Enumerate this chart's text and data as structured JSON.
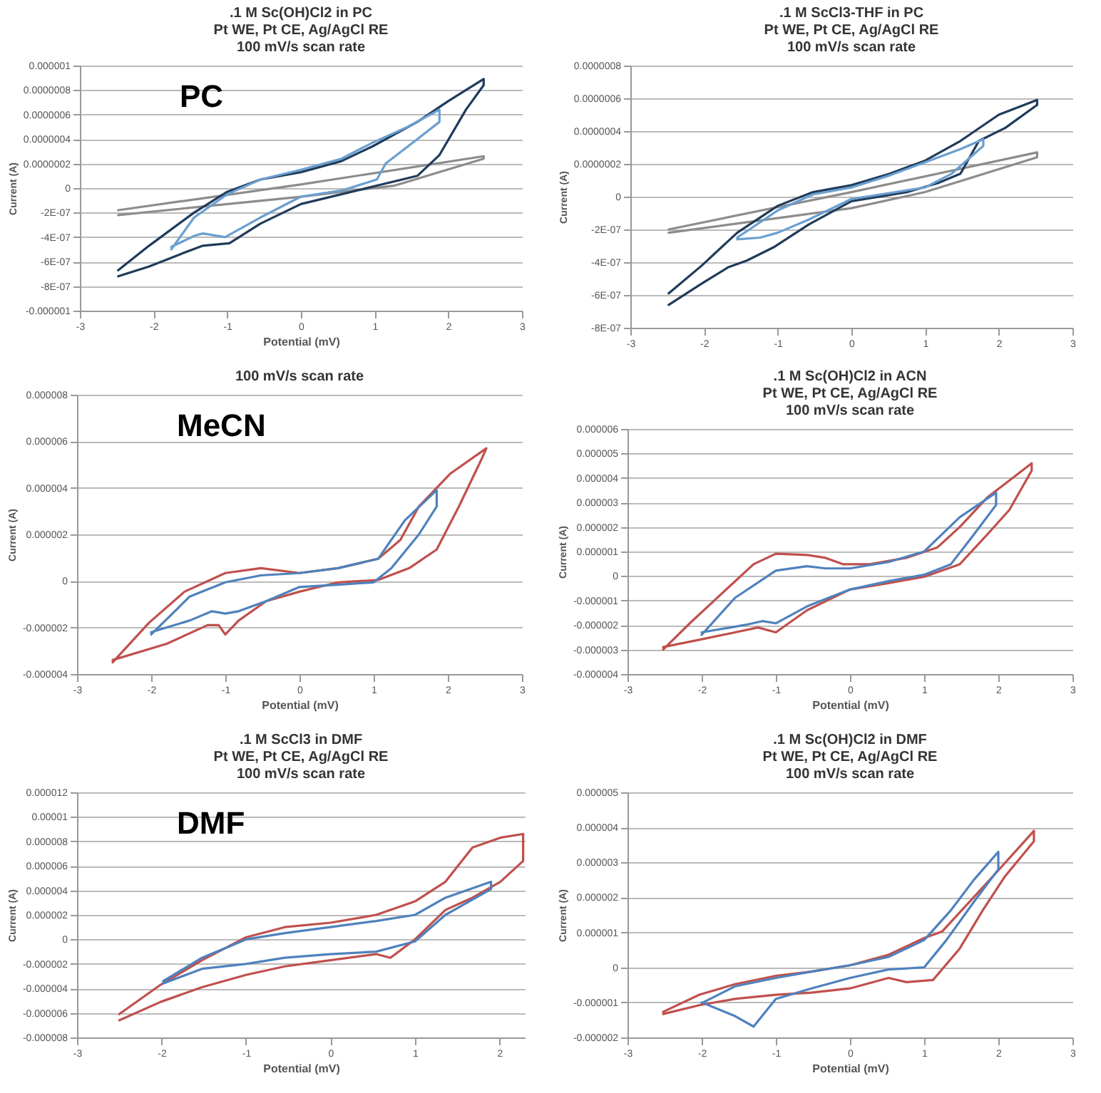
{
  "chart_data": [
    {
      "type": "line",
      "title": ".1 M Sc(OH)Cl2 in PC\nPt WE, Pt CE, Ag/AgCl RE\n100 mV/s scan rate",
      "xlabel": "Potential (mV)",
      "ylabel": "Current (A)",
      "annotations": [
        "PC"
      ],
      "grid": "y",
      "marker": "none",
      "line_style": "solid",
      "xlim": [
        -3,
        3
      ],
      "xticks": [
        -3,
        -2,
        -1,
        0,
        1,
        2,
        3
      ],
      "ylim": [
        -1e-06,
        1e-06
      ],
      "yticks": [
        {
          "value": -1e-06,
          "label": "-0.000001"
        },
        {
          "value": -8e-07,
          "label": "-8E-07"
        },
        {
          "value": -6e-07,
          "label": "-6E-07"
        },
        {
          "value": -4e-07,
          "label": "-4E-07"
        },
        {
          "value": -2e-07,
          "label": "-2E-07"
        },
        {
          "value": 0,
          "label": "0"
        },
        {
          "value": 2e-07,
          "label": "0.0000002"
        },
        {
          "value": 4e-07,
          "label": "0.0000004"
        },
        {
          "value": 6e-07,
          "label": "0.0000006"
        },
        {
          "value": 8e-07,
          "label": "0.0000008"
        },
        {
          "value": 1e-06,
          "label": "0.000001"
        }
      ],
      "series": [
        {
          "color": "#8c8c8c",
          "x": [
            -2.48,
            0,
            2.48,
            2.48,
            1.27,
            0,
            -2.48
          ],
          "values": [
            -1.8e-07,
            3e-08,
            2.6e-07,
            2.4e-07,
            2e-08,
            -7e-08,
            -2.2e-07
          ]
        },
        {
          "color": "#1f3b5a",
          "x": [
            -2.48,
            -2.06,
            -1.45,
            -1.0,
            -0.55,
            0,
            0.55,
            0.97,
            1.58,
            2.0,
            2.48,
            2.48,
            2.24,
            1.88,
            1.58,
            1.03,
            0.55,
            0,
            -0.55,
            -0.97,
            -1.33,
            -1.64,
            -2.06,
            -2.48
          ],
          "values": [
            -6.7e-07,
            -4.7e-07,
            -2e-07,
            -3e-08,
            7e-08,
            1.3e-07,
            2.2e-07,
            3.4e-07,
            5.4e-07,
            7.1e-07,
            8.9e-07,
            8.4e-07,
            6.4e-07,
            2.7e-07,
            1e-07,
            2e-08,
            -5e-08,
            -1.3e-07,
            -2.9e-07,
            -4.5e-07,
            -4.7e-07,
            -5.4e-07,
            -6.4e-07,
            -7.2e-07
          ]
        },
        {
          "color": "#6a9fd0",
          "x": [
            -1.76,
            -1.45,
            -1.0,
            -0.55,
            0,
            0.55,
            0.97,
            1.45,
            1.88,
            1.88,
            1.58,
            1.15,
            1.03,
            0.55,
            0,
            -0.55,
            -1.03,
            -1.33,
            -1.45,
            -1.76
          ],
          "values": [
            -5e-07,
            -2.4e-07,
            -5e-08,
            7e-08,
            1.5e-07,
            2.4e-07,
            3.7e-07,
            5e-07,
            6.4e-07,
            5.4e-07,
            4e-07,
            2e-07,
            7e-08,
            -2e-08,
            -7e-08,
            -2.4e-07,
            -4e-07,
            -3.7e-07,
            -3.9e-07,
            -4.8e-07
          ]
        }
      ]
    },
    {
      "type": "line",
      "title": ".1 M ScCl3-THF in PC\nPt WE, Pt CE, Ag/AgCl RE\n100 mV/s scan rate",
      "ylabel": "Current (A)",
      "grid": "y",
      "marker": "none",
      "line_style": "solid",
      "xlim": [
        -3,
        3
      ],
      "xticks": [
        -3,
        -2,
        -1,
        0,
        1,
        2,
        3
      ],
      "ylim": [
        -8e-07,
        8e-07
      ],
      "yticks": [
        {
          "value": -8e-07,
          "label": "-8E-07"
        },
        {
          "value": -6e-07,
          "label": "-6E-07"
        },
        {
          "value": -4e-07,
          "label": "-4E-07"
        },
        {
          "value": -2e-07,
          "label": "-2E-07"
        },
        {
          "value": 0,
          "label": "0"
        },
        {
          "value": 2e-07,
          "label": "0.0000002"
        },
        {
          "value": 4e-07,
          "label": "0.0000004"
        },
        {
          "value": 6e-07,
          "label": "0.0000006"
        },
        {
          "value": 8e-07,
          "label": "0.0000008"
        }
      ],
      "series": [
        {
          "color": "#8c8c8c",
          "x": [
            -2.48,
            0,
            2.52,
            2.52,
            1.0,
            0,
            -2.48
          ],
          "values": [
            -2e-07,
            2.8e-08,
            2.7e-07,
            2.4e-07,
            2.8e-08,
            -7e-08,
            -2.2e-07
          ]
        },
        {
          "color": "#1f3b5a",
          "x": [
            -2.48,
            -2.03,
            -1.55,
            -1.0,
            -0.52,
            0,
            0.52,
            1.0,
            1.48,
            2.0,
            2.52,
            2.52,
            2.09,
            1.73,
            1.48,
            1.18,
            0.76,
            0,
            -0.58,
            -1.06,
            -1.42,
            -1.67,
            -2.03,
            -2.48
          ],
          "values": [
            -5.9e-07,
            -4.2e-07,
            -2.2e-07,
            -5.6e-08,
            2.8e-08,
            7e-08,
            1.4e-07,
            2.2e-07,
            3.4e-07,
            5e-07,
            5.9e-07,
            5.6e-07,
            4.2e-07,
            3.4e-07,
            1.4e-07,
            8.4e-08,
            2.8e-08,
            -2.8e-08,
            -1.7e-07,
            -3.1e-07,
            -3.9e-07,
            -4.3e-07,
            -5.3e-07,
            -6.6e-07
          ]
        },
        {
          "color": "#6a9fd0",
          "x": [
            -1.55,
            -1.0,
            -0.52,
            0,
            0.52,
            1.0,
            1.48,
            1.79,
            1.79,
            1.36,
            1.0,
            0,
            -0.58,
            -1.0,
            -1.24,
            -1.55
          ],
          "values": [
            -2.5e-07,
            -8.4e-08,
            1.4e-08,
            5.6e-08,
            1.3e-07,
            2.1e-07,
            2.9e-07,
            3.5e-07,
            3.1e-07,
            1.4e-07,
            5.6e-08,
            -1.4e-08,
            -1.4e-07,
            -2.2e-07,
            -2.5e-07,
            -2.6e-07
          ]
        }
      ]
    },
    {
      "type": "line",
      "title": "100 mV/s scan rate",
      "xlabel": "Potential (mV)",
      "ylabel": "Current (A)",
      "annotations": [
        "MeCN"
      ],
      "grid": "y",
      "marker": "none",
      "line_style": "solid",
      "xlim": [
        -3,
        3
      ],
      "xticks": [
        -3,
        -2,
        -1,
        0,
        1,
        2,
        3
      ],
      "ylim": [
        -4e-06,
        8e-06
      ],
      "yticks": [
        {
          "value": -4e-06,
          "label": "-0.000004"
        },
        {
          "value": -2e-06,
          "label": "-0.000002"
        },
        {
          "value": 0,
          "label": "0"
        },
        {
          "value": 2e-06,
          "label": "0.000002"
        },
        {
          "value": 4e-06,
          "label": "0.000004"
        },
        {
          "value": 6e-06,
          "label": "0.000006"
        },
        {
          "value": 8e-06,
          "label": "0.000008"
        }
      ],
      "series": [
        {
          "color": "#c0504d",
          "x": [
            -2.52,
            -2.03,
            -1.55,
            -1.0,
            -0.52,
            0,
            0.52,
            1.06,
            1.36,
            1.61,
            2.03,
            2.52,
            2.45,
            2.15,
            1.85,
            1.48,
            1.06,
            0.52,
            0,
            -0.45,
            -0.82,
            -1.0,
            -1.09,
            -1.24,
            -1.79,
            -2.52
          ],
          "values": [
            -3.5e-06,
            -1.8e-06,
            -4.6e-07,
            3.4e-07,
            5.5e-07,
            3.4e-07,
            5.5e-07,
            9.5e-07,
            1.76e-06,
            3.2e-06,
            4.6e-06,
            5.7e-06,
            5.2e-06,
            3.2e-06,
            1.35e-06,
            5.5e-07,
            4e-08,
            -6e-08,
            -4.6e-07,
            -8.7e-07,
            -1.7e-06,
            -2.3e-06,
            -1.9e-06,
            -1.9e-06,
            -2.7e-06,
            -3.4e-06
          ]
        },
        {
          "color": "#4f81bd",
          "x": [
            -2.0,
            -1.48,
            -1.0,
            -0.52,
            0,
            0.52,
            1.06,
            1.42,
            1.85,
            1.85,
            1.61,
            1.24,
            1.0,
            0.52,
            0,
            -0.45,
            -0.82,
            -1.0,
            -1.18,
            -1.48,
            -2.0
          ],
          "values": [
            -2.3e-06,
            -6.7e-07,
            -6e-08,
            2.4e-07,
            3.4e-07,
            5.5e-07,
            9.5e-07,
            2.6e-06,
            3.9e-06,
            3.2e-06,
            2e-06,
            5.5e-07,
            -6e-08,
            -1.6e-07,
            -2.6e-07,
            -8.7e-07,
            -1.3e-06,
            -1.4e-06,
            -1.3e-06,
            -1.7e-06,
            -2.2e-06
          ]
        }
      ]
    },
    {
      "type": "line",
      "title": ".1 M Sc(OH)Cl2 in ACN\nPt WE, Pt CE, Ag/AgCl RE\n100 mV/s scan rate",
      "xlabel": "Potential (mV)",
      "ylabel": "Current (A)",
      "grid": "y",
      "marker": "none",
      "line_style": "solid",
      "xlim": [
        -3,
        3
      ],
      "xticks": [
        -3,
        -2,
        -1,
        0,
        1,
        2,
        3
      ],
      "ylim": [
        -4e-06,
        6e-06
      ],
      "yticks": [
        {
          "value": -4e-06,
          "label": "-0.000004"
        },
        {
          "value": -3e-06,
          "label": "-0.000003"
        },
        {
          "value": -2e-06,
          "label": "-0.000002"
        },
        {
          "value": -1e-06,
          "label": "-0.000001"
        },
        {
          "value": 0,
          "label": "0"
        },
        {
          "value": 1e-06,
          "label": "0.000001"
        },
        {
          "value": 2e-06,
          "label": "0.000002"
        },
        {
          "value": 3e-06,
          "label": "0.000003"
        },
        {
          "value": 4e-06,
          "label": "0.000004"
        },
        {
          "value": 5e-06,
          "label": "0.000005"
        },
        {
          "value": 6e-06,
          "label": "0.000006"
        }
      ],
      "series": [
        {
          "color": "#c0504d",
          "x": [
            -2.52,
            -2.15,
            -1.73,
            -1.3,
            -1.0,
            -0.58,
            -0.33,
            -0.09,
            0.27,
            0.76,
            1.18,
            1.48,
            1.85,
            2.45,
            2.45,
            2.15,
            1.85,
            1.48,
            1.0,
            0.52,
            0,
            -0.58,
            -1.0,
            -1.24,
            -1.55,
            -2.03,
            -2.52
          ],
          "values": [
            -3e-06,
            -1.9e-06,
            -7.2e-07,
            4.8e-07,
            9.1e-07,
            8.6e-07,
            7.4e-07,
            4.8e-07,
            4.8e-07,
            7.4e-07,
            1.17e-06,
            2e-06,
            3.2e-06,
            4.6e-06,
            4.3e-06,
            2.7e-06,
            1.69e-06,
            4.8e-07,
            -3e-08,
            -2.9e-07,
            -5.5e-07,
            -1.4e-06,
            -2.3e-06,
            -2.1e-06,
            -2.3e-06,
            -2.6e-06,
            -2.9e-06
          ]
        },
        {
          "color": "#4f81bd",
          "x": [
            -2.0,
            -1.55,
            -1.0,
            -0.58,
            -0.33,
            0,
            0.52,
            1.0,
            1.48,
            1.97,
            1.97,
            1.67,
            1.36,
            1.0,
            0.52,
            0,
            -0.58,
            -1.0,
            -1.18,
            -1.42,
            -2.0
          ],
          "values": [
            -2.4e-06,
            -8.9e-07,
            2.2e-07,
            4e-07,
            3.1e-07,
            3.1e-07,
            5.7e-07,
            1e-06,
            2.4e-06,
            3.4e-06,
            2.9e-06,
            1.69e-06,
            4.8e-07,
            5e-08,
            -2.1e-07,
            -5.5e-07,
            -1.24e-06,
            -1.93e-06,
            -1.84e-06,
            -2e-06,
            -2.3e-06
          ]
        }
      ]
    },
    {
      "type": "line",
      "title": ".1 M ScCl3 in DMF\nPt WE, Pt CE, Ag/AgCl RE\n100 mV/s scan rate",
      "xlabel": "Potential (mV)",
      "ylabel": "Current (A)",
      "annotations": [
        "DMF"
      ],
      "grid": "y",
      "marker": "none",
      "line_style": "solid",
      "xlim": [
        -3,
        2.3
      ],
      "xticks": [
        -3,
        -2,
        -1,
        0,
        1,
        2
      ],
      "ylim": [
        -8e-06,
        1.2e-05
      ],
      "yticks": [
        {
          "value": -8e-06,
          "label": "-0.000008"
        },
        {
          "value": -6e-06,
          "label": "-0.000006"
        },
        {
          "value": -4e-06,
          "label": "-0.000004"
        },
        {
          "value": -2e-06,
          "label": "-0.000002"
        },
        {
          "value": 0,
          "label": "0"
        },
        {
          "value": 2e-06,
          "label": "0.000002"
        },
        {
          "value": 4e-06,
          "label": "0.000004"
        },
        {
          "value": 6e-06,
          "label": "0.000006"
        },
        {
          "value": 8e-06,
          "label": "0.000008"
        },
        {
          "value": 1e-05,
          "label": "0.00001"
        },
        {
          "value": 1.2e-05,
          "label": "0.000012"
        }
      ],
      "series": [
        {
          "color": "#c0504d",
          "x": [
            -2.5,
            -2.01,
            -1.52,
            -1.0,
            -0.54,
            0,
            0.54,
            1.0,
            1.36,
            1.68,
            2.01,
            2.28,
            2.28,
            2.01,
            1.68,
            1.36,
            1.0,
            0.71,
            0.54,
            0,
            -0.54,
            -1.0,
            -1.52,
            -2.01,
            -2.5
          ],
          "values": [
            -6.1e-06,
            -3.7e-06,
            -1.7e-06,
            1.7e-07,
            1e-06,
            1.36e-06,
            2e-06,
            3.1e-06,
            4.7e-06,
            7.5e-06,
            8.3e-06,
            8.6e-06,
            6.4e-06,
            4.7e-06,
            3.4e-06,
            2.4e-06,
            0,
            -1.5e-06,
            -1.2e-06,
            -1.7e-06,
            -2.2e-06,
            -2.9e-06,
            -3.9e-06,
            -5.1e-06,
            -6.6e-06
          ]
        },
        {
          "color": "#4f81bd",
          "x": [
            -1.98,
            -1.52,
            -1.0,
            -0.54,
            0,
            0.54,
            1.0,
            1.36,
            1.9,
            1.9,
            1.36,
            1.0,
            0.54,
            0,
            -0.54,
            -1.0,
            -1.52,
            -1.98
          ],
          "values": [
            -3.4e-06,
            -1.5e-06,
            0,
            5.1e-07,
            1e-06,
            1.5e-06,
            2e-06,
            3.4e-06,
            4.7e-06,
            4.1e-06,
            2e-06,
            -1.7e-07,
            -1e-06,
            -1.2e-06,
            -1.5e-06,
            -2e-06,
            -2.4e-06,
            -3.6e-06
          ]
        }
      ]
    },
    {
      "type": "line",
      "title": ".1 M Sc(OH)Cl2 in DMF\nPt WE, Pt CE, Ag/AgCl RE\n100 mV/s scan rate",
      "xlabel": "Potential (mV)",
      "ylabel": "Current (A)",
      "grid": "y",
      "marker": "none",
      "line_style": "solid",
      "xlim": [
        -3,
        3
      ],
      "xticks": [
        -3,
        -2,
        -1,
        0,
        1,
        2,
        3
      ],
      "ylim": [
        -2e-06,
        5e-06
      ],
      "yticks": [
        {
          "value": -2e-06,
          "label": "-0.000002"
        },
        {
          "value": -1e-06,
          "label": "-0.000001"
        },
        {
          "value": 0,
          "label": "0"
        },
        {
          "value": 1e-06,
          "label": "0.000001"
        },
        {
          "value": 2e-06,
          "label": "0.000002"
        },
        {
          "value": 3e-06,
          "label": "0.000003"
        },
        {
          "value": 4e-06,
          "label": "0.000004"
        },
        {
          "value": 5e-06,
          "label": "0.000005"
        }
      ],
      "series": [
        {
          "color": "#c0504d",
          "x": [
            -2.52,
            -2.03,
            -1.55,
            -1.0,
            -0.52,
            0,
            0.52,
            1.0,
            1.24,
            1.61,
            1.97,
            2.48,
            2.48,
            2.09,
            1.79,
            1.48,
            1.12,
            0.76,
            0.52,
            0,
            -0.52,
            -1.0,
            -1.55,
            -2.03,
            -2.52
          ],
          "values": [
            -1.27e-06,
            -7.8e-07,
            -4.8e-07,
            -2.4e-07,
            -1.2e-07,
            6e-08,
            3.6e-07,
            8.4e-07,
            1.02e-06,
            1.87e-06,
            2.7e-06,
            3.9e-06,
            3.6e-06,
            2.6e-06,
            1.63e-06,
            5.4e-07,
            -3.6e-07,
            -4.2e-07,
            -3e-07,
            -6e-07,
            -7.2e-07,
            -7.8e-07,
            -9e-07,
            -1.08e-06,
            -1.33e-06
          ]
        },
        {
          "color": "#4f81bd",
          "x": [
            -2.0,
            -1.55,
            -1.0,
            -0.52,
            0,
            0.52,
            1.0,
            1.36,
            1.67,
            2.0,
            2.0,
            1.67,
            1.3,
            1.0,
            0.52,
            0,
            -0.52,
            -1.0,
            -1.3,
            -1.55,
            -2.0
          ],
          "values": [
            -1.02e-06,
            -5.4e-07,
            -3e-07,
            -1.2e-07,
            6e-08,
            3e-07,
            7.8e-07,
            1.63e-06,
            2.5e-06,
            3.3e-06,
            2.8e-06,
            1.87e-06,
            7.8e-07,
            0,
            -6e-08,
            -3e-07,
            -6e-07,
            -9e-07,
            -1.69e-06,
            -1.39e-06,
            -1e-06
          ]
        }
      ]
    }
  ]
}
